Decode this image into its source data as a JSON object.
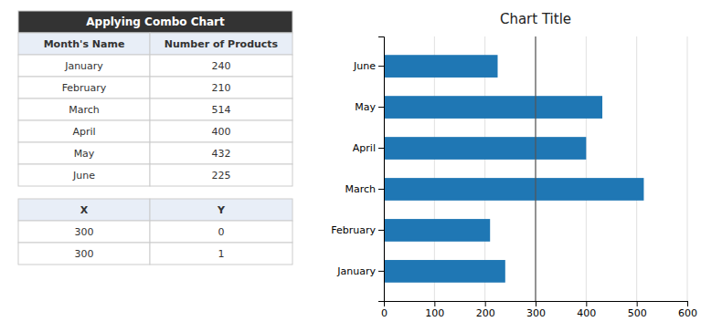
{
  "chart_data": {
    "type": "bar",
    "orientation": "horizontal",
    "title": "Chart Title",
    "categories": [
      "January",
      "February",
      "March",
      "April",
      "May",
      "June"
    ],
    "values": [
      240,
      210,
      514,
      400,
      432,
      225
    ],
    "xlim": [
      0,
      600
    ],
    "xticks": [
      0,
      100,
      200,
      300,
      400,
      500,
      600
    ],
    "grid": true,
    "reference_line": {
      "x": 300
    }
  },
  "tables": [
    {
      "title": "Applying Combo Chart",
      "columns": [
        "Month's Name",
        "Number of Products"
      ],
      "rows": [
        [
          "January",
          "240"
        ],
        [
          "February",
          "210"
        ],
        [
          "March",
          "514"
        ],
        [
          "April",
          "400"
        ],
        [
          "May",
          "432"
        ],
        [
          "June",
          "225"
        ]
      ]
    },
    {
      "columns": [
        "X",
        "Y"
      ],
      "rows": [
        [
          "300",
          "0"
        ],
        [
          "300",
          "1"
        ]
      ]
    }
  ]
}
